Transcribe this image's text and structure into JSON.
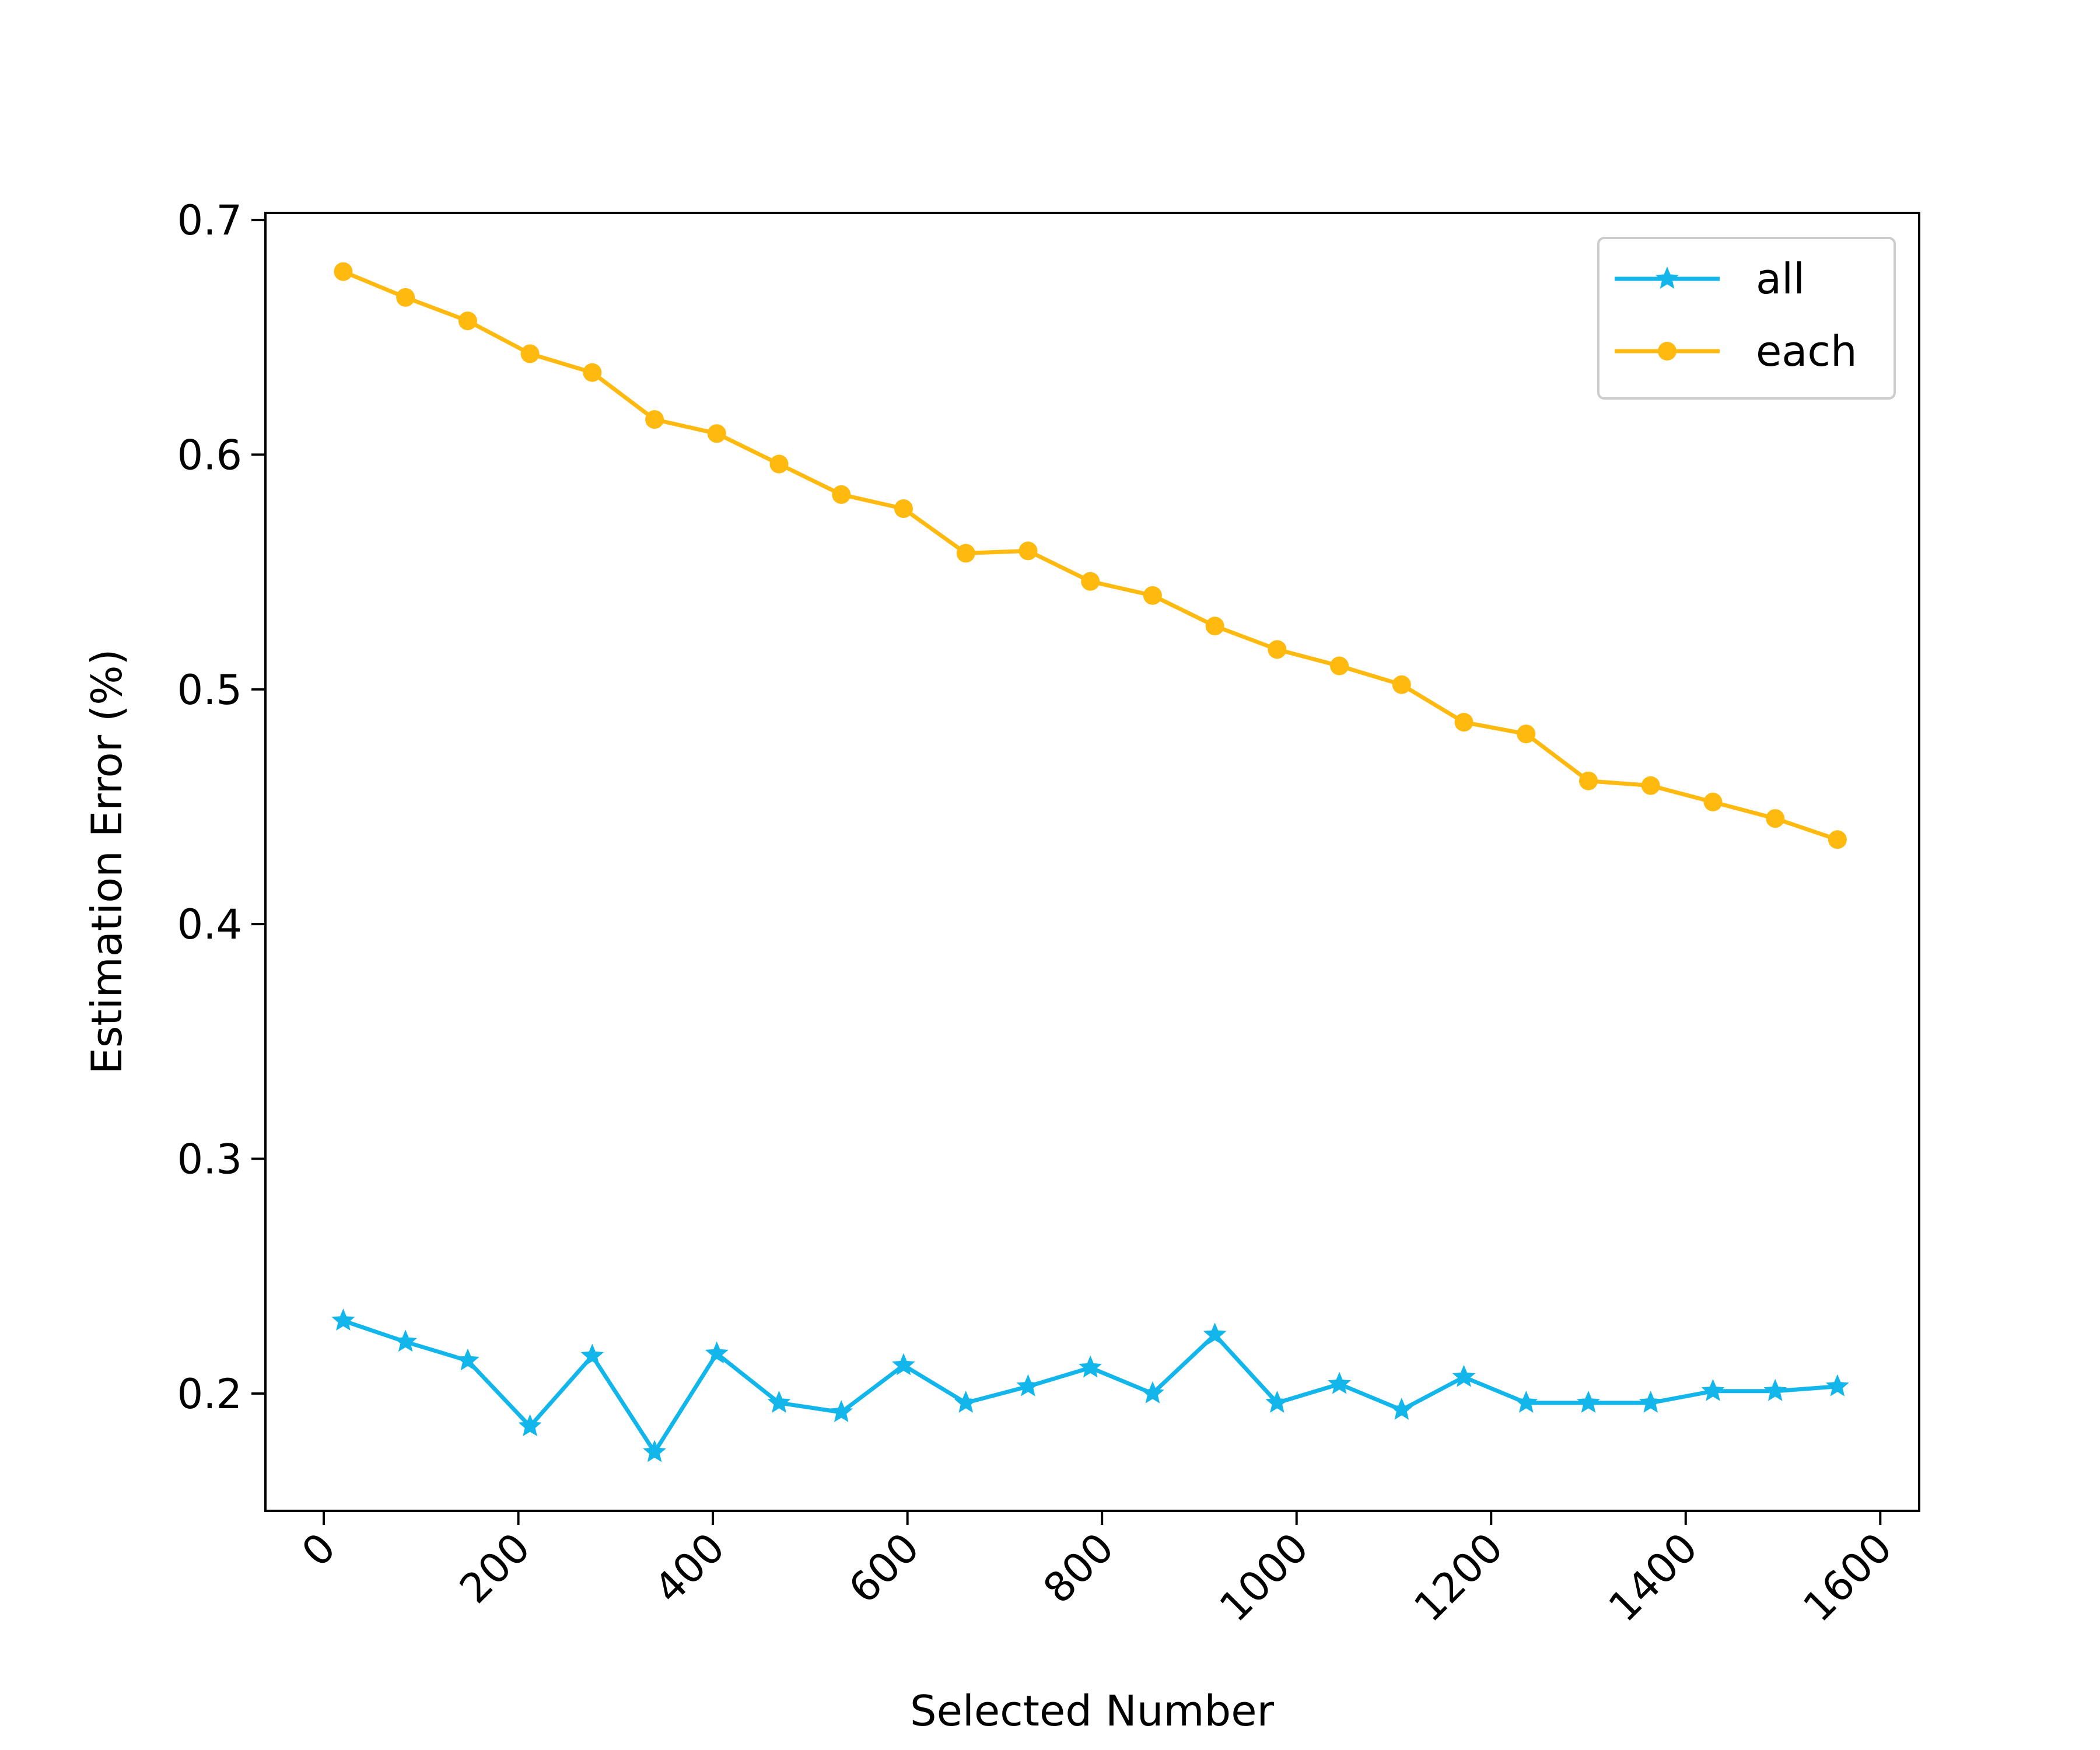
{
  "chart_data": {
    "type": "line",
    "title": "",
    "xlabel": "Selected Number",
    "ylabel": "Estimation Error (%)",
    "xlim": [
      -60,
      1640
    ],
    "ylim": [
      0.15,
      0.703
    ],
    "xticks": [
      0,
      200,
      400,
      600,
      800,
      1000,
      1200,
      1400,
      1600
    ],
    "yticks": [
      0.2,
      0.3,
      0.4,
      0.5,
      0.6,
      0.7
    ],
    "xtick_labels": [
      "0",
      "200",
      "400",
      "600",
      "800",
      "1000",
      "1200",
      "1400",
      "1600"
    ],
    "ytick_labels": [
      "0.2",
      "0.3",
      "0.4",
      "0.5",
      "0.6",
      "0.7"
    ],
    "xtick_rotation": 45,
    "grid": false,
    "legend_position": "top-right",
    "x": [
      20,
      84,
      148,
      212,
      276,
      340,
      404,
      468,
      532,
      596,
      660,
      724,
      788,
      852,
      916,
      980,
      1044,
      1108,
      1172,
      1236,
      1300,
      1364,
      1428,
      1492,
      1556
    ],
    "series": [
      {
        "name": "all",
        "color": "#12b6ea",
        "marker": "star",
        "values": [
          0.231,
          0.222,
          0.214,
          0.186,
          0.216,
          0.175,
          0.217,
          0.196,
          0.192,
          0.212,
          0.196,
          0.203,
          0.211,
          0.2,
          0.225,
          0.196,
          0.204,
          0.193,
          0.207,
          0.196,
          0.196,
          0.196,
          0.201,
          0.201,
          0.203
        ]
      },
      {
        "name": "each",
        "color": "#ffb90f",
        "marker": "circle",
        "values": [
          0.678,
          0.667,
          0.657,
          0.643,
          0.635,
          0.615,
          0.609,
          0.596,
          0.583,
          0.577,
          0.558,
          0.559,
          0.546,
          0.54,
          0.527,
          0.517,
          0.51,
          0.502,
          0.486,
          0.481,
          0.461,
          0.459,
          0.452,
          0.445,
          0.436
        ]
      }
    ]
  }
}
